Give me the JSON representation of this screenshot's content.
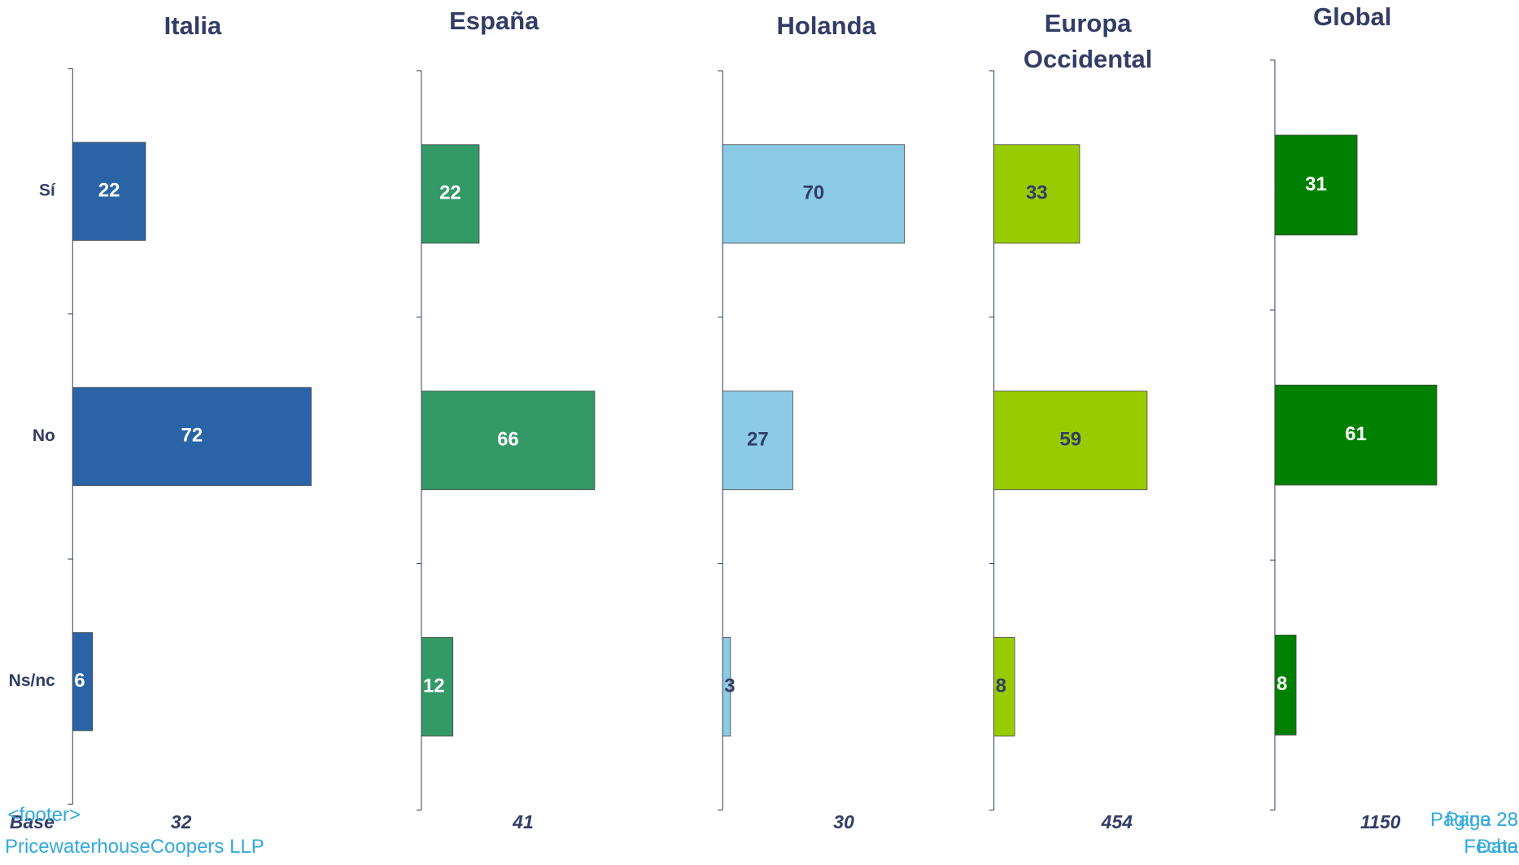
{
  "chart_data": [
    {
      "type": "bar",
      "orientation": "horizontal",
      "title": "Italia",
      "categories": [
        "Sí",
        "No",
        "Ns/nc"
      ],
      "values": [
        22,
        72,
        6
      ],
      "color": "#2a64a6",
      "label_color": "#ffffff",
      "xlim": [
        0,
        100
      ],
      "base": 32
    },
    {
      "type": "bar",
      "orientation": "horizontal",
      "title": "España",
      "values": [
        22,
        66,
        12
      ],
      "color": "#339966",
      "label_color": "#ffffff",
      "xlim": [
        0,
        100
      ],
      "base": 41
    },
    {
      "type": "bar",
      "orientation": "horizontal",
      "title": "Holanda",
      "values": [
        70,
        27,
        3
      ],
      "color": "#8ccbe6",
      "label_color": "#333d66",
      "xlim": [
        0,
        100
      ],
      "base": 30
    },
    {
      "type": "bar",
      "orientation": "horizontal",
      "title": "Europa Occidental",
      "values": [
        33,
        59,
        8
      ],
      "color": "#99cc00",
      "label_color": "#333d66",
      "xlim": [
        0,
        100
      ],
      "base": 454
    },
    {
      "type": "bar",
      "orientation": "horizontal",
      "title": "Global",
      "values": [
        31,
        61,
        8
      ],
      "color": "#008000",
      "label_color": "#ffffff",
      "xlim": [
        0,
        100
      ],
      "base": 1150
    }
  ],
  "base_label": "Base",
  "footer": {
    "placeholder": "<footer>",
    "company": "PricewaterhouseCoopers LLP",
    "page_es": "Página 28",
    "page_en": "Page 28",
    "date_es": "Fecha",
    "date_en": "Date"
  }
}
